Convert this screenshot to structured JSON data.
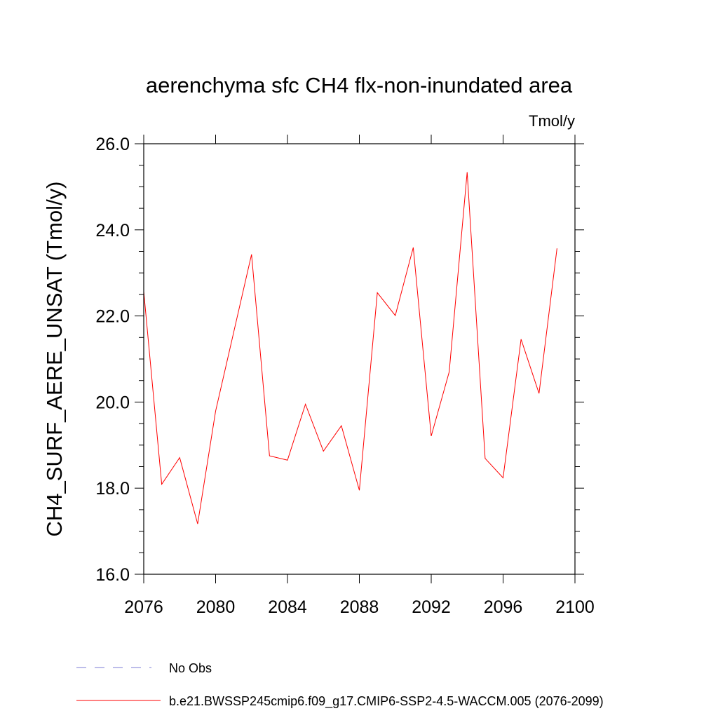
{
  "chart_data": {
    "type": "line",
    "title": "aerenchyma sfc CH4 flx-non-inundated area",
    "units": "Tmol/y",
    "xlabel": "",
    "ylabel": "CH4_SURF_AERE_UNSAT  (Tmol/y)",
    "xlim": [
      2076,
      2100
    ],
    "ylim": [
      16.0,
      26.0
    ],
    "x_ticks": [
      2076,
      2080,
      2084,
      2088,
      2092,
      2096,
      2100
    ],
    "x_tick_labels": [
      "2076",
      "2080",
      "2084",
      "2088",
      "2092",
      "2096",
      "2100"
    ],
    "y_ticks": [
      16.0,
      18.0,
      20.0,
      22.0,
      24.0,
      26.0
    ],
    "y_tick_labels": [
      "16.0",
      "18.0",
      "20.0",
      "22.0",
      "24.0",
      "26.0"
    ],
    "grid": false,
    "legend_position": "bottom",
    "series": [
      {
        "name": "b.e21.BWSSP245cmip6.f09_g17.CMIP6-SSP2-4.5-WACCM.005 (2076-2099)",
        "color": "#ff0000",
        "dash": "solid",
        "x": [
          2076,
          2077,
          2078,
          2079,
          2080,
          2081,
          2082,
          2083,
          2084,
          2085,
          2086,
          2087,
          2088,
          2089,
          2090,
          2091,
          2092,
          2093,
          2094,
          2095,
          2096,
          2097,
          2098,
          2099
        ],
        "values": [
          22.57,
          18.09,
          18.71,
          17.17,
          19.79,
          21.61,
          23.43,
          18.75,
          18.65,
          19.95,
          18.86,
          19.45,
          17.95,
          22.54,
          22.01,
          23.59,
          19.21,
          20.7,
          25.34,
          18.69,
          18.24,
          21.46,
          20.2,
          23.57
        ]
      },
      {
        "name": "No Obs",
        "color": "#7b7bd6",
        "dash": "dashed",
        "x": [],
        "values": []
      }
    ]
  }
}
